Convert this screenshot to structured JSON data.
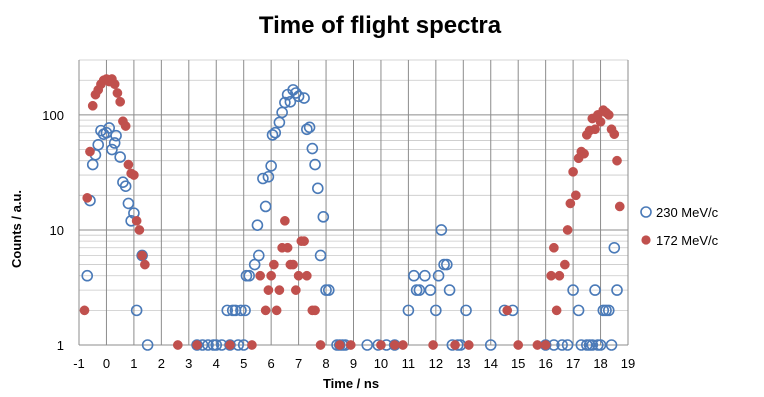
{
  "chart_data": {
    "type": "scatter",
    "title": "Time of flight spectra",
    "xlabel": "Time / ns",
    "ylabel": "Counts / a.u.",
    "x_ticks": [
      "-1",
      "0",
      "1",
      "2",
      "3",
      "4",
      "5",
      "6",
      "7",
      "8",
      "9",
      "10",
      "11",
      "12",
      "13",
      "14",
      "15",
      "16",
      "17",
      "18",
      "19"
    ],
    "y_ticks": [
      "1",
      "10",
      "100"
    ],
    "xlim": [
      -1,
      19
    ],
    "ylim": [
      1,
      300
    ],
    "y_scale": "log",
    "grid": true,
    "legend_position": "right",
    "series": [
      {
        "name": "230 MeV/c",
        "color": "#4a7ab8",
        "marker": "open-circle",
        "points": [
          [
            -0.7,
            4
          ],
          [
            -0.6,
            18
          ],
          [
            -0.5,
            37
          ],
          [
            -0.4,
            45
          ],
          [
            -0.3,
            55
          ],
          [
            -0.2,
            73
          ],
          [
            -0.1,
            68
          ],
          [
            0.0,
            70
          ],
          [
            0.1,
            77
          ],
          [
            0.2,
            50
          ],
          [
            0.3,
            57
          ],
          [
            0.35,
            66
          ],
          [
            0.5,
            43
          ],
          [
            0.6,
            26
          ],
          [
            0.7,
            24
          ],
          [
            0.8,
            17
          ],
          [
            0.9,
            12
          ],
          [
            1.0,
            14
          ],
          [
            1.1,
            2
          ],
          [
            1.3,
            6
          ],
          [
            1.5,
            1
          ],
          [
            3.3,
            1
          ],
          [
            3.5,
            1
          ],
          [
            3.7,
            1
          ],
          [
            3.9,
            1
          ],
          [
            4.0,
            1
          ],
          [
            4.2,
            1
          ],
          [
            4.4,
            2
          ],
          [
            4.5,
            1
          ],
          [
            4.6,
            2
          ],
          [
            4.7,
            2
          ],
          [
            4.8,
            1
          ],
          [
            4.9,
            2
          ],
          [
            5.0,
            1
          ],
          [
            5.05,
            2
          ],
          [
            5.1,
            4
          ],
          [
            5.2,
            4
          ],
          [
            5.4,
            5
          ],
          [
            5.5,
            11
          ],
          [
            5.55,
            6
          ],
          [
            5.7,
            28
          ],
          [
            5.8,
            16
          ],
          [
            5.9,
            29
          ],
          [
            6.0,
            36
          ],
          [
            6.05,
            67
          ],
          [
            6.15,
            70
          ],
          [
            6.3,
            86
          ],
          [
            6.4,
            105
          ],
          [
            6.5,
            128
          ],
          [
            6.6,
            150
          ],
          [
            6.7,
            130
          ],
          [
            6.8,
            165
          ],
          [
            6.9,
            155
          ],
          [
            7.0,
            145
          ],
          [
            7.2,
            140
          ],
          [
            7.3,
            75
          ],
          [
            7.4,
            78
          ],
          [
            7.5,
            51
          ],
          [
            7.6,
            37
          ],
          [
            7.7,
            23
          ],
          [
            7.8,
            6
          ],
          [
            7.9,
            13
          ],
          [
            8.0,
            3
          ],
          [
            8.1,
            3
          ],
          [
            8.4,
            1
          ],
          [
            8.5,
            1
          ],
          [
            8.6,
            1
          ],
          [
            8.7,
            1
          ],
          [
            9.5,
            1
          ],
          [
            9.9,
            1
          ],
          [
            10.2,
            1
          ],
          [
            10.5,
            1
          ],
          [
            11.0,
            2
          ],
          [
            11.2,
            4
          ],
          [
            11.3,
            3
          ],
          [
            11.4,
            3
          ],
          [
            11.6,
            4
          ],
          [
            11.8,
            3
          ],
          [
            12.0,
            2
          ],
          [
            12.1,
            4
          ],
          [
            12.2,
            10
          ],
          [
            12.3,
            5
          ],
          [
            12.4,
            5
          ],
          [
            12.5,
            3
          ],
          [
            12.6,
            1
          ],
          [
            12.8,
            1
          ],
          [
            12.9,
            1
          ],
          [
            13.1,
            2
          ],
          [
            14.0,
            1
          ],
          [
            14.5,
            2
          ],
          [
            14.8,
            2
          ],
          [
            16.0,
            1
          ],
          [
            16.3,
            1
          ],
          [
            16.6,
            1
          ],
          [
            16.8,
            1
          ],
          [
            17.0,
            3
          ],
          [
            17.2,
            2
          ],
          [
            17.3,
            1
          ],
          [
            17.5,
            1
          ],
          [
            17.6,
            1
          ],
          [
            17.7,
            1
          ],
          [
            17.8,
            3
          ],
          [
            17.9,
            1
          ],
          [
            18.0,
            1
          ],
          [
            18.1,
            2
          ],
          [
            18.2,
            2
          ],
          [
            18.3,
            2
          ],
          [
            18.4,
            1
          ],
          [
            18.5,
            7
          ],
          [
            18.6,
            3
          ]
        ]
      },
      {
        "name": "172 MeV/c",
        "color": "#c0504d",
        "marker": "filled-circle",
        "points": [
          [
            -0.8,
            2
          ],
          [
            -0.7,
            19
          ],
          [
            -0.6,
            48
          ],
          [
            -0.5,
            120
          ],
          [
            -0.4,
            150
          ],
          [
            -0.3,
            165
          ],
          [
            -0.2,
            185
          ],
          [
            -0.1,
            200
          ],
          [
            0.0,
            205
          ],
          [
            0.1,
            195
          ],
          [
            0.2,
            205
          ],
          [
            0.3,
            185
          ],
          [
            0.4,
            155
          ],
          [
            0.5,
            130
          ],
          [
            0.6,
            88
          ],
          [
            0.7,
            80
          ],
          [
            0.8,
            37
          ],
          [
            0.9,
            31
          ],
          [
            1.0,
            30
          ],
          [
            1.1,
            12
          ],
          [
            1.2,
            10
          ],
          [
            1.3,
            6
          ],
          [
            1.4,
            5
          ],
          [
            2.6,
            1
          ],
          [
            3.3,
            1
          ],
          [
            4.5,
            1
          ],
          [
            5.3,
            1
          ],
          [
            5.6,
            4
          ],
          [
            5.8,
            2
          ],
          [
            5.9,
            3
          ],
          [
            6.0,
            4
          ],
          [
            6.1,
            5
          ],
          [
            6.2,
            2
          ],
          [
            6.3,
            3
          ],
          [
            6.4,
            7
          ],
          [
            6.5,
            12
          ],
          [
            6.6,
            7
          ],
          [
            6.7,
            5
          ],
          [
            6.8,
            5
          ],
          [
            6.9,
            3
          ],
          [
            7.0,
            4
          ],
          [
            7.1,
            8
          ],
          [
            7.2,
            8
          ],
          [
            7.3,
            4
          ],
          [
            7.5,
            2
          ],
          [
            7.6,
            2
          ],
          [
            7.8,
            1
          ],
          [
            8.5,
            1
          ],
          [
            8.9,
            1
          ],
          [
            10.0,
            1
          ],
          [
            10.5,
            1
          ],
          [
            10.8,
            1
          ],
          [
            11.9,
            1
          ],
          [
            12.7,
            1
          ],
          [
            13.2,
            1
          ],
          [
            14.6,
            2
          ],
          [
            15.0,
            1
          ],
          [
            15.7,
            1
          ],
          [
            16.0,
            1
          ],
          [
            16.2,
            4
          ],
          [
            16.3,
            7
          ],
          [
            16.4,
            2
          ],
          [
            16.5,
            4
          ],
          [
            16.7,
            5
          ],
          [
            16.8,
            10
          ],
          [
            16.9,
            17
          ],
          [
            17.0,
            32
          ],
          [
            17.1,
            20
          ],
          [
            17.2,
            42
          ],
          [
            17.3,
            48
          ],
          [
            17.4,
            46
          ],
          [
            17.5,
            67
          ],
          [
            17.6,
            73
          ],
          [
            17.7,
            93
          ],
          [
            17.8,
            75
          ],
          [
            17.9,
            100
          ],
          [
            18.0,
            87
          ],
          [
            18.1,
            110
          ],
          [
            18.2,
            105
          ],
          [
            18.3,
            100
          ],
          [
            18.4,
            75
          ],
          [
            18.5,
            68
          ],
          [
            18.6,
            40
          ],
          [
            18.7,
            16
          ]
        ]
      }
    ]
  }
}
